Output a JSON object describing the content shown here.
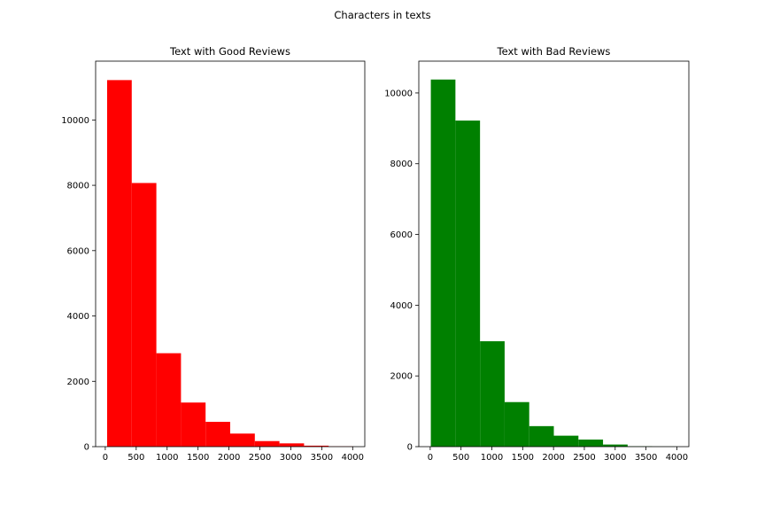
{
  "figure_title": "Characters in texts",
  "chart_data": [
    {
      "type": "bar",
      "title": "Text with Good Reviews",
      "xlabel": "",
      "ylabel": "",
      "color": "#ff0000",
      "bin_edges": [
        30,
        428,
        826,
        1224,
        1622,
        2020,
        2418,
        2816,
        3214,
        3612,
        4010
      ],
      "values": [
        11220,
        8070,
        2860,
        1350,
        760,
        400,
        170,
        100,
        30,
        8
      ],
      "xlim": [
        -156,
        4196
      ],
      "ylim": [
        0,
        11800
      ],
      "xticks": [
        0,
        500,
        1000,
        1500,
        2000,
        2500,
        3000,
        3500,
        4000
      ],
      "yticks": [
        0,
        2000,
        4000,
        6000,
        8000,
        10000
      ],
      "grid": false
    },
    {
      "type": "bar",
      "title": "Text with Bad Reviews",
      "xlabel": "",
      "ylabel": "",
      "color": "#008000",
      "bin_edges": [
        10,
        409,
        808,
        1207,
        1606,
        2005,
        2404,
        2803,
        3202,
        3601,
        4000
      ],
      "values": [
        10380,
        9220,
        2980,
        1260,
        580,
        310,
        200,
        60,
        10,
        3
      ],
      "xlim": [
        -185,
        4195
      ],
      "ylim": [
        0,
        10900
      ],
      "xticks": [
        0,
        500,
        1000,
        1500,
        2000,
        2500,
        3000,
        3500,
        4000
      ],
      "yticks": [
        0,
        2000,
        4000,
        6000,
        8000,
        10000
      ],
      "grid": false
    }
  ]
}
